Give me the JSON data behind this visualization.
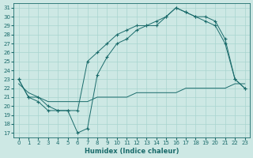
{
  "xlabel": "Humidex (Indice chaleur)",
  "bg_color": "#cde8e4",
  "line_color": "#1a6b6b",
  "grid_color": "#a8d4cf",
  "xlim": [
    -0.5,
    23.5
  ],
  "ylim": [
    16.5,
    31.5
  ],
  "yticks": [
    17,
    18,
    19,
    20,
    21,
    22,
    23,
    24,
    25,
    26,
    27,
    28,
    29,
    30,
    31
  ],
  "xticks": [
    0,
    1,
    2,
    3,
    4,
    5,
    6,
    7,
    8,
    9,
    10,
    11,
    12,
    13,
    14,
    15,
    16,
    17,
    18,
    19,
    20,
    21,
    22,
    23
  ],
  "line1_x": [
    0,
    1,
    2,
    3,
    4,
    5,
    6,
    7,
    8,
    9,
    10,
    11,
    12,
    13,
    14,
    15,
    16,
    17,
    18,
    19,
    20,
    21,
    22,
    23
  ],
  "line1_y": [
    23.0,
    21.0,
    21.0,
    20.0,
    19.5,
    19.5,
    17.0,
    17.5,
    23.5,
    25.5,
    27.0,
    27.5,
    28.5,
    29.0,
    29.0,
    30.0,
    31.0,
    30.5,
    30.0,
    30.0,
    29.5,
    27.5,
    23.0,
    22.0
  ],
  "line2_x": [
    0,
    1,
    2,
    3,
    4,
    5,
    6,
    7,
    8,
    9,
    10,
    11,
    12,
    13,
    14,
    15,
    16,
    17,
    18,
    19,
    20,
    21,
    22,
    23
  ],
  "line2_y": [
    23.0,
    21.0,
    20.5,
    19.5,
    19.5,
    19.5,
    19.5,
    25.0,
    26.0,
    27.0,
    28.0,
    28.5,
    29.0,
    29.0,
    29.5,
    30.0,
    31.0,
    30.5,
    30.0,
    29.5,
    29.0,
    27.0,
    23.0,
    22.0
  ],
  "line3_x": [
    0,
    1,
    2,
    3,
    4,
    5,
    6,
    7,
    8,
    9,
    10,
    11,
    12,
    13,
    14,
    15,
    16,
    17,
    18,
    19,
    20,
    21,
    22,
    23
  ],
  "line3_y": [
    22.5,
    21.5,
    21.0,
    20.5,
    20.5,
    20.5,
    20.5,
    20.5,
    21.0,
    21.0,
    21.0,
    21.0,
    21.5,
    21.5,
    21.5,
    21.5,
    21.5,
    22.0,
    22.0,
    22.0,
    22.0,
    22.0,
    22.5,
    22.5
  ]
}
